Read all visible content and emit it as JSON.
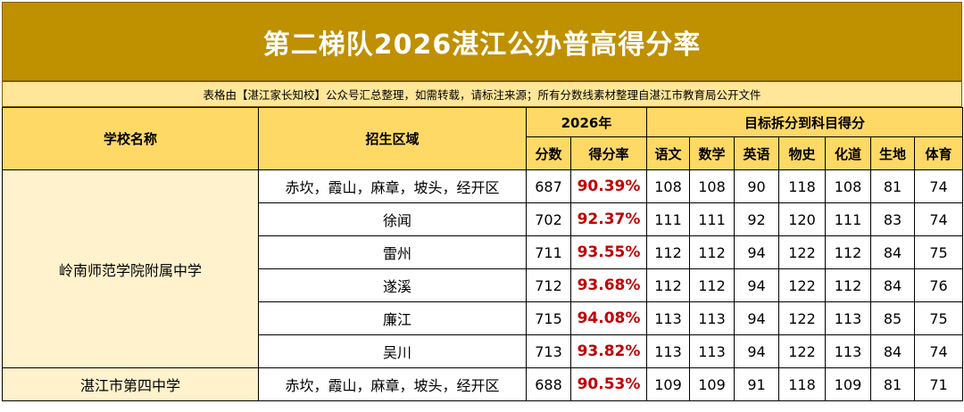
{
  "title": "第二梯队2026湛江公办普高得分率",
  "note": "表格由【湛江家长知校】公众号汇总整理，如需转载，请标注来源；所有分数线素材整理自湛江市教育局公开文件",
  "headers": {
    "school": "学校名称",
    "region": "招生区域",
    "year_group": "2026年",
    "score": "分数",
    "rate": "得分率",
    "subject_group": "目标拆分到科目得分",
    "subjects": [
      "语文",
      "数学",
      "英语",
      "物史",
      "化道",
      "生地",
      "体育"
    ]
  },
  "schools": [
    {
      "name": "岭南师范学院附属中学",
      "rows": [
        {
          "region": "赤坎，霞山，麻章，坡头，经开区",
          "score": "687",
          "rate": "90.39%",
          "subjects": [
            "108",
            "108",
            "90",
            "118",
            "108",
            "81",
            "74"
          ]
        },
        {
          "region": "徐闻",
          "score": "702",
          "rate": "92.37%",
          "subjects": [
            "111",
            "111",
            "92",
            "120",
            "111",
            "83",
            "74"
          ]
        },
        {
          "region": "雷州",
          "score": "711",
          "rate": "93.55%",
          "subjects": [
            "112",
            "112",
            "94",
            "122",
            "112",
            "84",
            "75"
          ]
        },
        {
          "region": "遂溪",
          "score": "712",
          "rate": "93.68%",
          "subjects": [
            "112",
            "112",
            "94",
            "122",
            "112",
            "84",
            "76"
          ]
        },
        {
          "region": "廉江",
          "score": "715",
          "rate": "94.08%",
          "subjects": [
            "113",
            "113",
            "94",
            "122",
            "113",
            "85",
            "75"
          ]
        },
        {
          "region": "吴川",
          "score": "713",
          "rate": "93.82%",
          "subjects": [
            "113",
            "113",
            "94",
            "122",
            "113",
            "84",
            "74"
          ]
        }
      ]
    },
    {
      "name": "湛江市第四中学",
      "rows": [
        {
          "region": "赤坎，霞山，麻章，坡头，经开区",
          "score": "688",
          "rate": "90.53%",
          "subjects": [
            "109",
            "109",
            "91",
            "118",
            "109",
            "81",
            "71"
          ]
        }
      ]
    }
  ]
}
